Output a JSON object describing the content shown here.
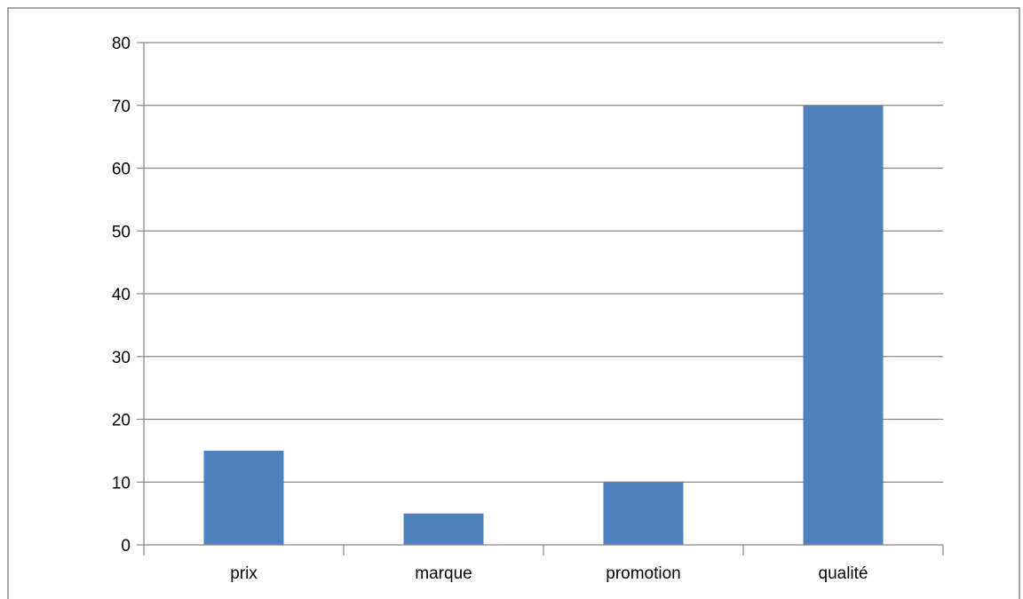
{
  "chart_data": {
    "type": "bar",
    "title": "",
    "xlabel": "",
    "ylabel": "",
    "categories": [
      "prix",
      "marque",
      "promotion",
      "qualité"
    ],
    "values": [
      15,
      5,
      10,
      70
    ],
    "ylim": [
      0,
      80
    ],
    "yticks": [
      0,
      10,
      20,
      30,
      40,
      50,
      60,
      70,
      80
    ],
    "grid": true,
    "legend": "none",
    "colors": {
      "bar": "#4f81bd",
      "grid": "#868686",
      "axis": "#868686",
      "frame": "#8a8a8a",
      "text": "#000000"
    }
  }
}
